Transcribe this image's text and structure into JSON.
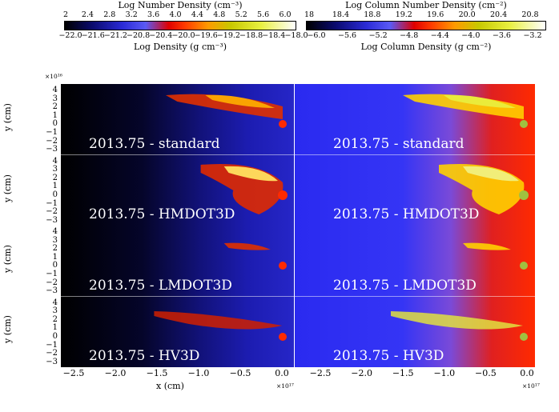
{
  "colorbars": {
    "left": {
      "top_title": "Log Number Density (cm⁻³)",
      "top_ticks": [
        "2",
        "2.4",
        "2.8",
        "3.2",
        "3.6",
        "4.0",
        "4.4",
        "4.8",
        "5.2",
        "5.6",
        "6.0"
      ],
      "bottom_ticks": [
        "−22.0",
        "−21.6",
        "−21.2",
        "−20.8",
        "−20.4",
        "−20.0",
        "−19.6",
        "−19.2",
        "−18.8",
        "−18.4",
        "−18.0"
      ],
      "bottom_title": "Log Density (g cm⁻³)"
    },
    "right": {
      "top_title": "Log Column Number Density (cm⁻²)",
      "top_ticks": [
        "18",
        "18.4",
        "18.8",
        "19.2",
        "19.6",
        "20.0",
        "20.4",
        "20.8"
      ],
      "bottom_ticks": [
        "−6.0",
        "−5.6",
        "−5.2",
        "−4.8",
        "−4.4",
        "−4.0",
        "−3.6",
        "−3.2"
      ],
      "bottom_title": "Log Column Density (g cm⁻²)"
    },
    "colors": [
      "#000000",
      "#0a0a6e",
      "#2b2bd6",
      "#5a5af5",
      "#e00000",
      "#ff3a00",
      "#ff9a00",
      "#c8c800",
      "#e8f040",
      "#ffffff"
    ]
  },
  "axes": {
    "y_label": "y (cm)",
    "y_exponent": "×10¹⁶",
    "y_ticks": [
      "4",
      "3",
      "2",
      "1",
      "0",
      "−1",
      "−2",
      "−3"
    ],
    "x_label": "x (cm)",
    "x_exponent": "×10¹⁷",
    "x_ticks": [
      "−2.5",
      "−2.0",
      "−1.5",
      "−1.0",
      "−0.5",
      "0.0"
    ]
  },
  "rows": [
    {
      "label": "2013.75 - standard"
    },
    {
      "label": "2013.75 - HMDOT3D"
    },
    {
      "label": "2013.75 - LMDOT3D"
    },
    {
      "label": "2013.75 - HV3D"
    }
  ]
}
